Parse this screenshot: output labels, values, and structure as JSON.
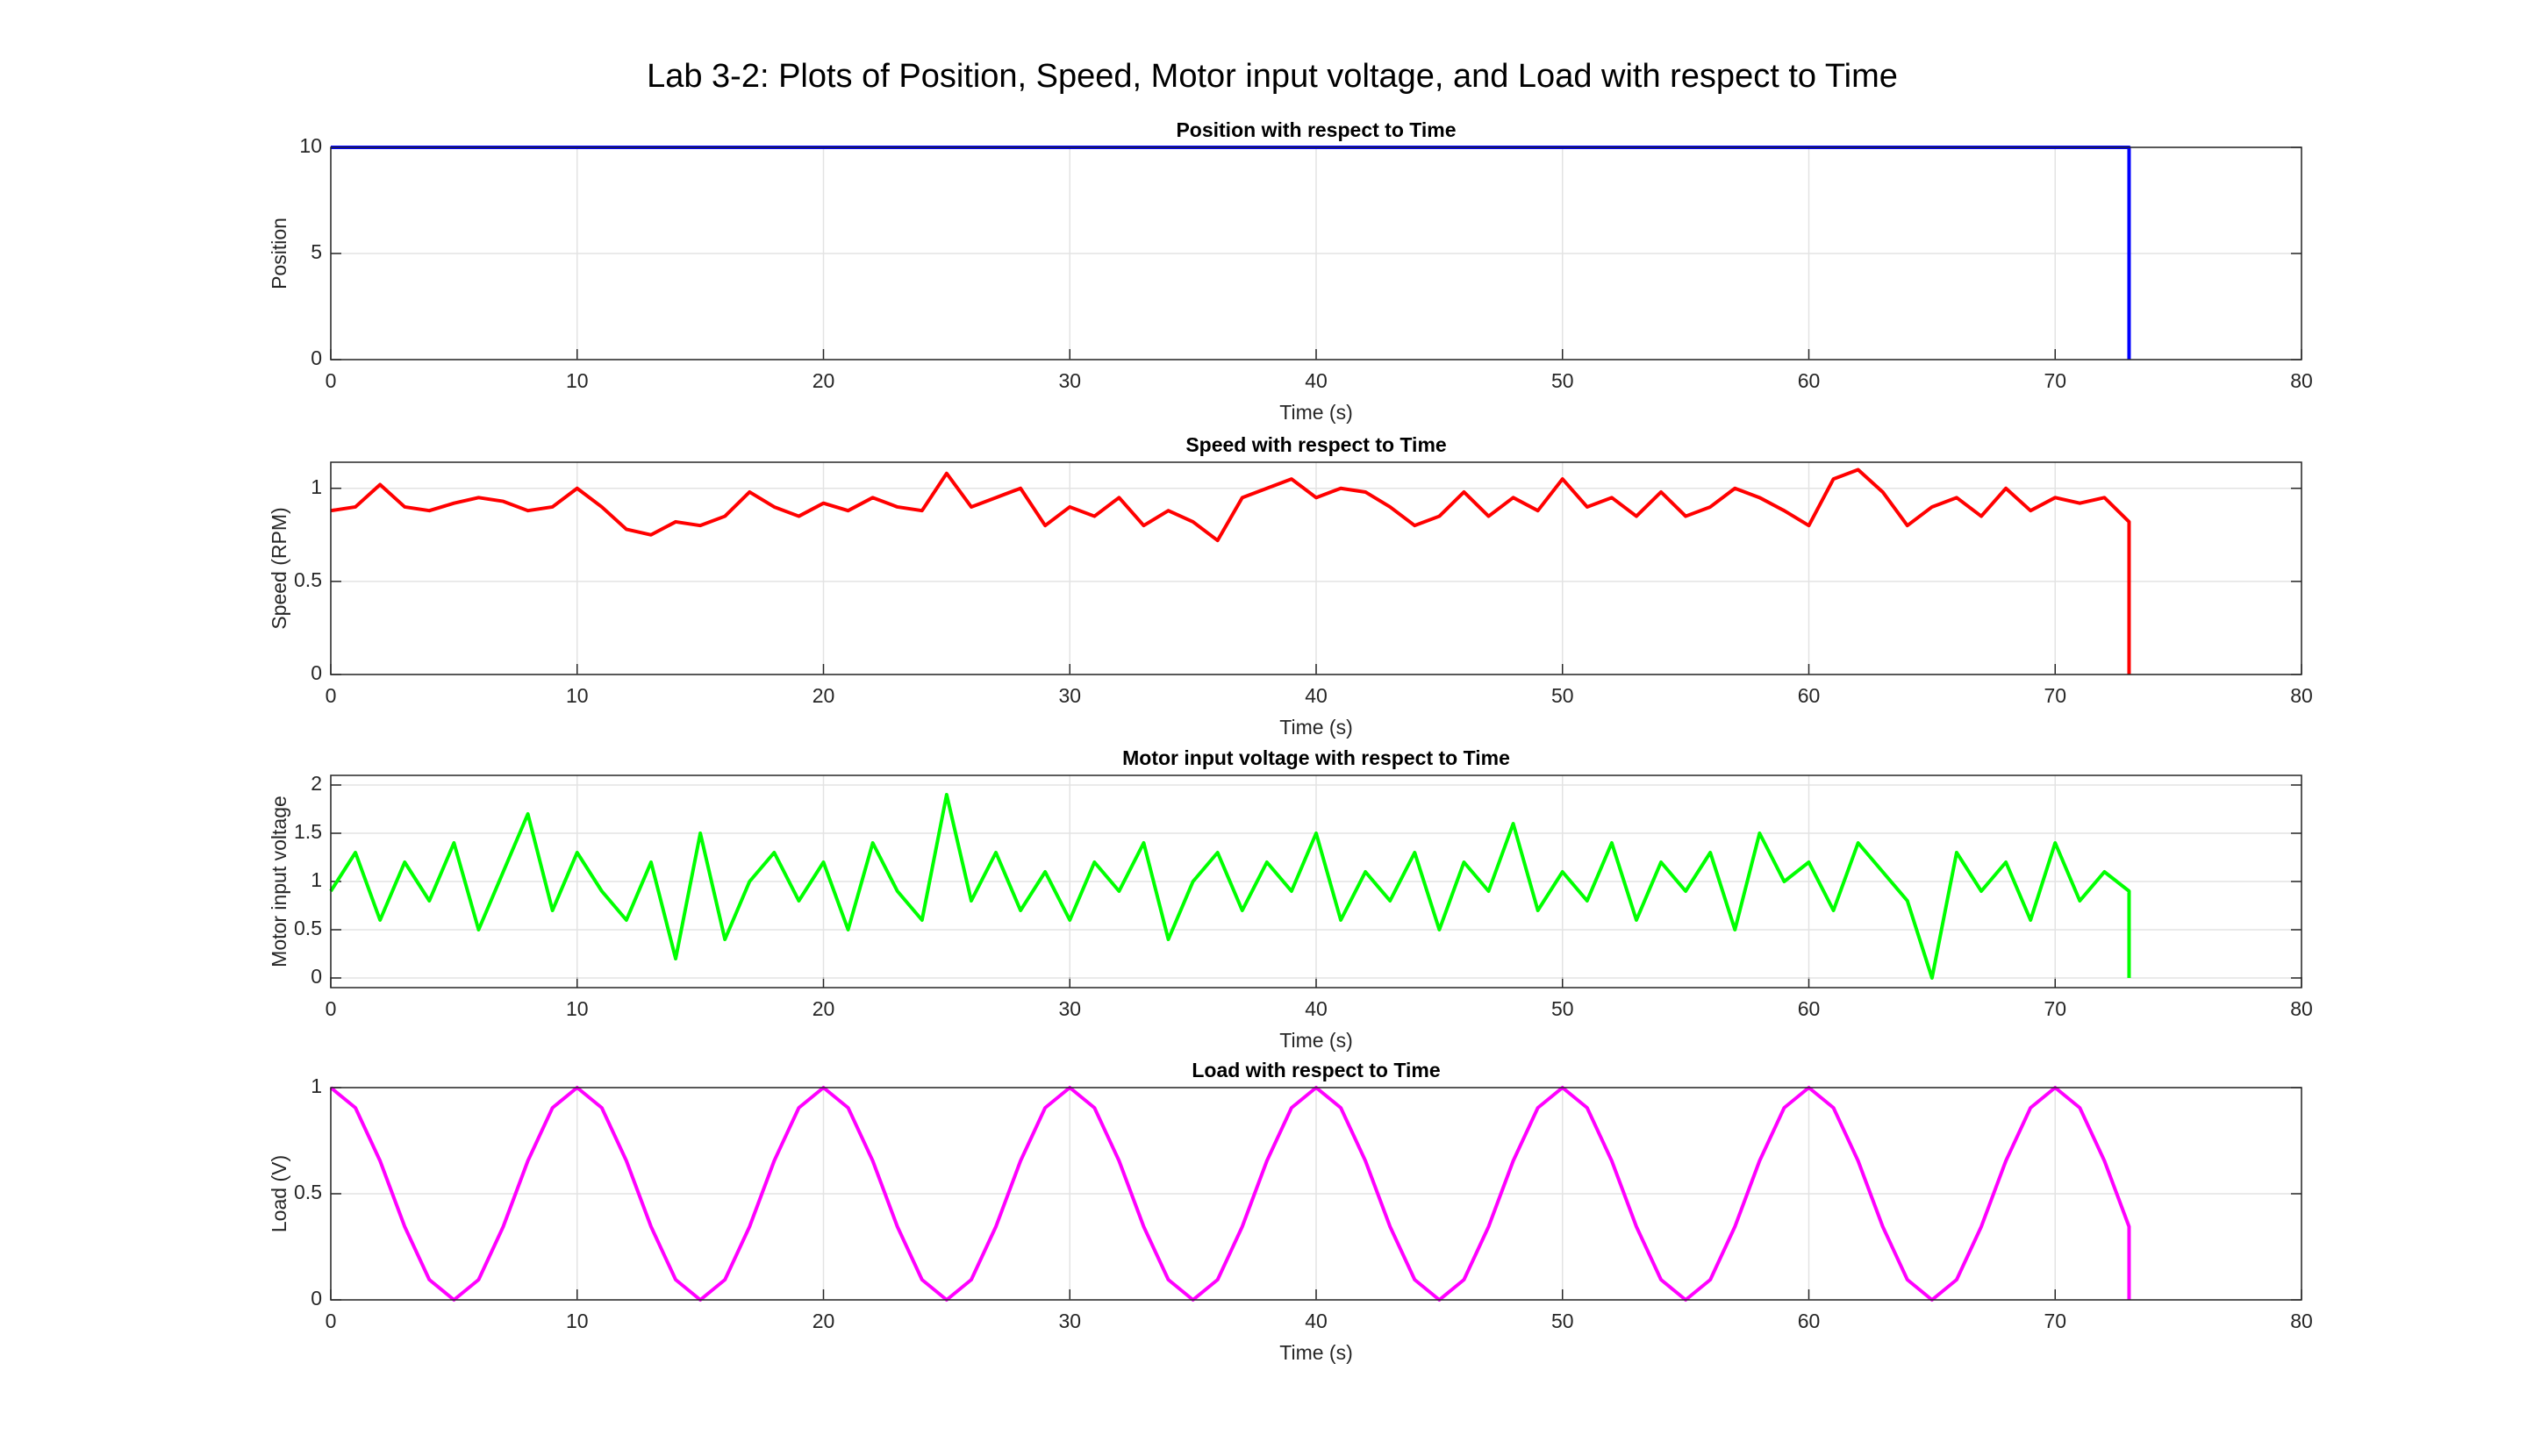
{
  "title": "Lab 3-2: Plots of Position, Speed, Motor input voltage, and Load with respect to Time",
  "chart_data": [
    {
      "type": "line",
      "title": "Position with respect to Time",
      "xlabel": "Time (s)",
      "ylabel": "Position",
      "color": "#0000ff",
      "grid": true,
      "xlim": [
        0,
        80
      ],
      "xticks": [
        0,
        10,
        20,
        30,
        40,
        50,
        60,
        70,
        80
      ],
      "ylim": [
        0,
        10
      ],
      "yticks": [
        0,
        5,
        10
      ],
      "x": [
        0,
        73,
        73
      ],
      "values": [
        10,
        10,
        0
      ]
    },
    {
      "type": "line",
      "title": "Speed with respect to Time",
      "xlabel": "Time (s)",
      "ylabel": "Speed (RPM)",
      "color": "#ff0000",
      "grid": true,
      "xlim": [
        0,
        80
      ],
      "xticks": [
        0,
        10,
        20,
        30,
        40,
        50,
        60,
        70,
        80
      ],
      "ylim": [
        0,
        1.14
      ],
      "yticks": [
        0,
        0.5,
        1
      ],
      "x": [
        0,
        1,
        2,
        3,
        4,
        5,
        6,
        7,
        8,
        9,
        10,
        11,
        12,
        13,
        14,
        15,
        16,
        17,
        18,
        19,
        20,
        21,
        22,
        23,
        24,
        25,
        26,
        27,
        28,
        29,
        30,
        31,
        32,
        33,
        34,
        35,
        36,
        37,
        38,
        39,
        40,
        41,
        42,
        43,
        44,
        45,
        46,
        47,
        48,
        49,
        50,
        51,
        52,
        53,
        54,
        55,
        56,
        57,
        58,
        59,
        60,
        61,
        62,
        63,
        64,
        65,
        66,
        67,
        68,
        69,
        70,
        71,
        72,
        73,
        73
      ],
      "values": [
        0.88,
        0.9,
        1.02,
        0.9,
        0.88,
        0.92,
        0.95,
        0.93,
        0.88,
        0.9,
        1.0,
        0.9,
        0.78,
        0.75,
        0.82,
        0.8,
        0.85,
        0.98,
        0.9,
        0.85,
        0.92,
        0.88,
        0.95,
        0.9,
        0.88,
        1.08,
        0.9,
        0.95,
        1.0,
        0.8,
        0.9,
        0.85,
        0.95,
        0.8,
        0.88,
        0.82,
        0.72,
        0.95,
        1.0,
        1.05,
        0.95,
        1.0,
        0.98,
        0.9,
        0.8,
        0.85,
        0.98,
        0.85,
        0.95,
        0.88,
        1.05,
        0.9,
        0.95,
        0.85,
        0.98,
        0.85,
        0.9,
        1.0,
        0.95,
        0.88,
        0.8,
        1.05,
        1.1,
        0.98,
        0.8,
        0.9,
        0.95,
        0.85,
        1.0,
        0.88,
        0.95,
        0.92,
        0.95,
        0.82,
        0
      ]
    },
    {
      "type": "line",
      "title": "Motor input voltage with respect to Time",
      "xlabel": "Time (s)",
      "ylabel": "Motor input voltage",
      "color": "#00ff00",
      "grid": true,
      "xlim": [
        0,
        80
      ],
      "xticks": [
        0,
        10,
        20,
        30,
        40,
        50,
        60,
        70,
        80
      ],
      "ylim": [
        -0.1,
        2.1
      ],
      "yticks": [
        0,
        0.5,
        1,
        1.5,
        2
      ],
      "x": [
        0,
        1,
        2,
        3,
        4,
        5,
        6,
        7,
        8,
        9,
        10,
        11,
        12,
        13,
        14,
        15,
        16,
        17,
        18,
        19,
        20,
        21,
        22,
        23,
        24,
        25,
        26,
        27,
        28,
        29,
        30,
        31,
        32,
        33,
        34,
        35,
        36,
        37,
        38,
        39,
        40,
        41,
        42,
        43,
        44,
        45,
        46,
        47,
        48,
        49,
        50,
        51,
        52,
        53,
        54,
        55,
        56,
        57,
        58,
        59,
        60,
        61,
        62,
        63,
        64,
        65,
        66,
        67,
        68,
        69,
        70,
        71,
        72,
        73,
        73
      ],
      "values": [
        0.9,
        1.3,
        0.6,
        1.2,
        0.8,
        1.4,
        0.5,
        1.1,
        1.7,
        0.7,
        1.3,
        0.9,
        0.6,
        1.2,
        0.2,
        1.5,
        0.4,
        1.0,
        1.3,
        0.8,
        1.2,
        0.5,
        1.4,
        0.9,
        0.6,
        1.9,
        0.8,
        1.3,
        0.7,
        1.1,
        0.6,
        1.2,
        0.9,
        1.4,
        0.4,
        1.0,
        1.3,
        0.7,
        1.2,
        0.9,
        1.5,
        0.6,
        1.1,
        0.8,
        1.3,
        0.5,
        1.2,
        0.9,
        1.6,
        0.7,
        1.1,
        0.8,
        1.4,
        0.6,
        1.2,
        0.9,
        1.3,
        0.5,
        1.5,
        1.0,
        1.2,
        0.7,
        1.4,
        1.1,
        0.8,
        0.0,
        1.3,
        0.9,
        1.2,
        0.6,
        1.4,
        0.8,
        1.1,
        0.9,
        0
      ]
    },
    {
      "type": "line",
      "title": "Load with respect to Time",
      "xlabel": "Time (s)",
      "ylabel": "Load (V)",
      "color": "#ff00ff",
      "grid": true,
      "xlim": [
        0,
        80
      ],
      "xticks": [
        0,
        10,
        20,
        30,
        40,
        50,
        60,
        70,
        80
      ],
      "ylim": [
        0,
        1
      ],
      "yticks": [
        0,
        0.5,
        1
      ],
      "x": [
        0,
        1,
        2,
        3,
        4,
        5,
        6,
        7,
        8,
        9,
        10,
        11,
        12,
        13,
        14,
        15,
        16,
        17,
        18,
        19,
        20,
        21,
        22,
        23,
        24,
        25,
        26,
        27,
        28,
        29,
        30,
        31,
        32,
        33,
        34,
        35,
        36,
        37,
        38,
        39,
        40,
        41,
        42,
        43,
        44,
        45,
        46,
        47,
        48,
        49,
        50,
        51,
        52,
        53,
        54,
        55,
        56,
        57,
        58,
        59,
        60,
        61,
        62,
        63,
        64,
        65,
        66,
        67,
        68,
        69,
        70,
        71,
        72,
        73,
        73
      ],
      "values": [
        1,
        0.905,
        0.655,
        0.345,
        0.095,
        0,
        0.095,
        0.345,
        0.655,
        0.905,
        1,
        0.905,
        0.655,
        0.345,
        0.095,
        0,
        0.095,
        0.345,
        0.655,
        0.905,
        1,
        0.905,
        0.655,
        0.345,
        0.095,
        0,
        0.095,
        0.345,
        0.655,
        0.905,
        1,
        0.905,
        0.655,
        0.345,
        0.095,
        0,
        0.095,
        0.345,
        0.655,
        0.905,
        1,
        0.905,
        0.655,
        0.345,
        0.095,
        0,
        0.095,
        0.345,
        0.655,
        0.905,
        1,
        0.905,
        0.655,
        0.345,
        0.095,
        0,
        0.095,
        0.345,
        0.655,
        0.905,
        1,
        0.905,
        0.655,
        0.345,
        0.095,
        0,
        0.095,
        0.345,
        0.655,
        0.905,
        1,
        0.905,
        0.655,
        0.345,
        0
      ]
    }
  ]
}
